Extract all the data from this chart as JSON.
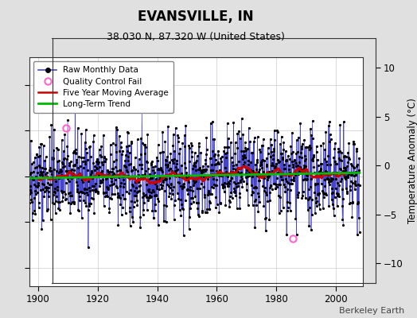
{
  "title": "EVANSVILLE, IN",
  "subtitle": "38.030 N, 87.320 W (United States)",
  "ylabel": "Temperature Anomaly (°C)",
  "watermark": "Berkeley Earth",
  "xlim": [
    1897,
    2009
  ],
  "ylim": [
    -12,
    13
  ],
  "yticks": [
    -10,
    -5,
    0,
    5,
    10
  ],
  "xticks": [
    1900,
    1920,
    1940,
    1960,
    1980,
    2000
  ],
  "start_year": 1895,
  "end_year": 2008,
  "seed": 42,
  "raw_color": "#4444cc",
  "dot_color": "#000000",
  "mavg_color": "#cc0000",
  "trend_color": "#00bb00",
  "qc_color": "#ff66cc",
  "background_color": "#e0e0e0",
  "plot_bg_color": "#ffffff",
  "grid_color": "#cccccc",
  "qc_points": [
    [
      1909.25,
      5.3
    ],
    [
      1985.5,
      -6.8
    ]
  ],
  "trend_val": 0.0,
  "title_fontsize": 12,
  "subtitle_fontsize": 9,
  "tick_fontsize": 8.5,
  "ylabel_fontsize": 8.5,
  "legend_fontsize": 7.5,
  "watermark_fontsize": 8
}
